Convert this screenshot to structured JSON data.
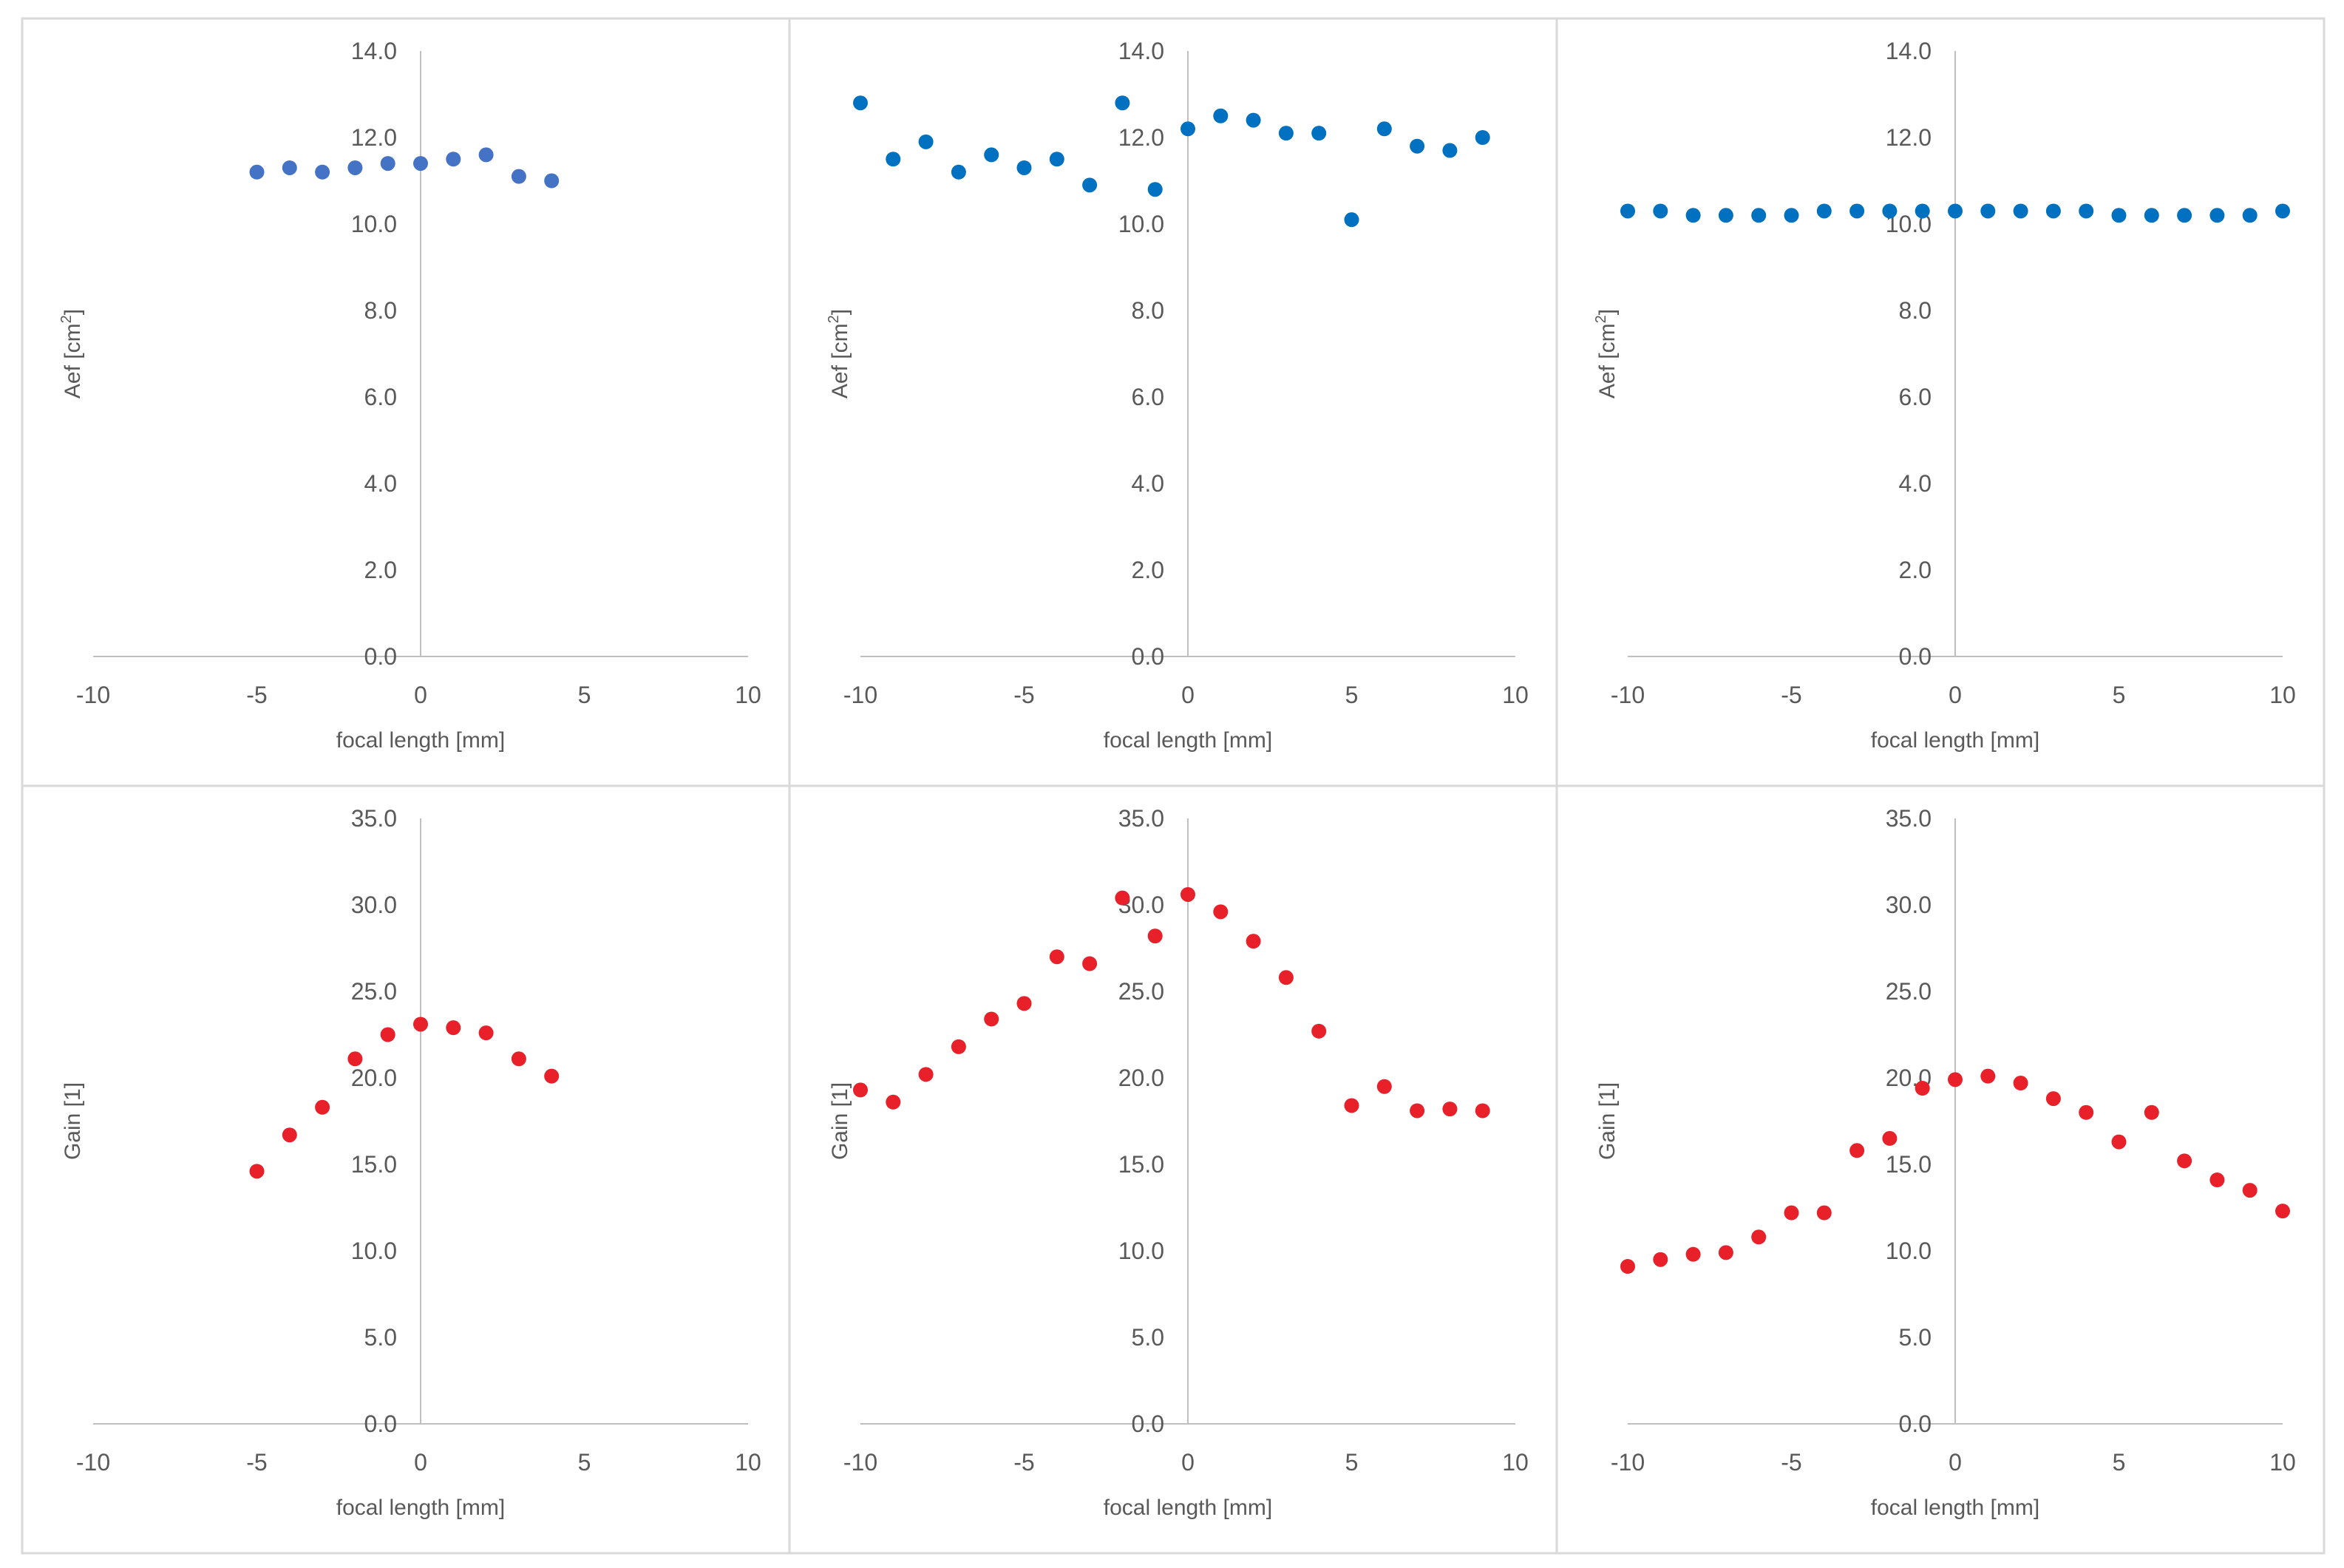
{
  "chart_data": [
    {
      "type": "scatter",
      "title": "",
      "xlabel": "focal length [mm]",
      "ylabel_main": "Aef [cm",
      "ylabel_sup": "2",
      "ylabel_end": "]",
      "xlim": [
        -10,
        10
      ],
      "ylim": [
        0,
        14
      ],
      "xticks": [
        "-10",
        "-5",
        "0",
        "5",
        "10"
      ],
      "yticks": [
        "0.0",
        "2.0",
        "4.0",
        "6.0",
        "8.0",
        "10.0",
        "12.0",
        "14.0"
      ],
      "color": "#4472C4",
      "x": [
        -5,
        -4,
        -3,
        -2,
        -1,
        0,
        1,
        2,
        3,
        4
      ],
      "y": [
        11.2,
        11.3,
        11.2,
        11.3,
        11.4,
        11.4,
        11.5,
        11.6,
        11.1,
        11.0
      ]
    },
    {
      "type": "scatter",
      "title": "",
      "xlabel": "focal length [mm]",
      "ylabel_main": "Aef [cm",
      "ylabel_sup": "2",
      "ylabel_end": "]",
      "xlim": [
        -10,
        10
      ],
      "ylim": [
        0,
        14
      ],
      "xticks": [
        "-10",
        "-5",
        "0",
        "5",
        "10"
      ],
      "yticks": [
        "0.0",
        "2.0",
        "4.0",
        "6.0",
        "8.0",
        "10.0",
        "12.0",
        "14.0"
      ],
      "color": "#0070C0",
      "x": [
        -10,
        -9,
        -8,
        -7,
        -6,
        -5,
        -4,
        -3,
        -2,
        -1,
        0,
        1,
        2,
        3,
        4,
        5,
        6,
        7,
        8,
        9
      ],
      "y": [
        12.8,
        11.5,
        11.9,
        11.2,
        11.6,
        11.3,
        11.5,
        10.9,
        12.8,
        10.8,
        12.2,
        12.5,
        12.4,
        12.1,
        12.1,
        10.1,
        12.2,
        11.8,
        11.7,
        12.0
      ]
    },
    {
      "type": "scatter",
      "title": "",
      "xlabel": "focal length [mm]",
      "ylabel_main": "Aef [cm",
      "ylabel_sup": "2",
      "ylabel_end": "]",
      "xlim": [
        -10,
        10
      ],
      "ylim": [
        0,
        14
      ],
      "xticks": [
        "-10",
        "-5",
        "0",
        "5",
        "10"
      ],
      "yticks": [
        "0.0",
        "2.0",
        "4.0",
        "6.0",
        "8.0",
        "10.0",
        "12.0",
        "14.0"
      ],
      "color": "#0070C0",
      "x": [
        -10,
        -9,
        -8,
        -7,
        -6,
        -5,
        -4,
        -3,
        -2,
        -1,
        0,
        1,
        2,
        3,
        4,
        5,
        6,
        7,
        8,
        9,
        10
      ],
      "y": [
        10.3,
        10.3,
        10.2,
        10.2,
        10.2,
        10.2,
        10.3,
        10.3,
        10.3,
        10.3,
        10.3,
        10.3,
        10.3,
        10.3,
        10.3,
        10.2,
        10.2,
        10.2,
        10.2,
        10.2,
        10.3
      ]
    },
    {
      "type": "scatter",
      "title": "",
      "xlabel": "focal length [mm]",
      "ylabel_main": "Gain [1]",
      "ylabel_sup": "",
      "ylabel_end": "",
      "xlim": [
        -10,
        10
      ],
      "ylim": [
        0,
        35
      ],
      "xticks": [
        "-10",
        "-5",
        "0",
        "5",
        "10"
      ],
      "yticks": [
        "0.0",
        "5.0",
        "10.0",
        "15.0",
        "20.0",
        "25.0",
        "30.0",
        "35.0"
      ],
      "color": "#E8202A",
      "x": [
        -5,
        -4,
        -3,
        -2,
        -1,
        0,
        1,
        2,
        3,
        4
      ],
      "y": [
        14.6,
        16.7,
        18.3,
        21.1,
        22.5,
        23.1,
        22.9,
        22.6,
        21.1,
        20.1
      ]
    },
    {
      "type": "scatter",
      "title": "",
      "xlabel": "focal length [mm]",
      "ylabel_main": "Gain [1]",
      "ylabel_sup": "",
      "ylabel_end": "",
      "xlim": [
        -10,
        10
      ],
      "ylim": [
        0,
        35
      ],
      "xticks": [
        "-10",
        "-5",
        "0",
        "5",
        "10"
      ],
      "yticks": [
        "0.0",
        "5.0",
        "10.0",
        "15.0",
        "20.0",
        "25.0",
        "30.0",
        "35.0"
      ],
      "color": "#E8202A",
      "x": [
        -10,
        -9,
        -8,
        -7,
        -6,
        -5,
        -4,
        -3,
        -2,
        -1,
        0,
        1,
        2,
        3,
        4,
        5,
        6,
        7,
        8,
        9
      ],
      "y": [
        19.3,
        18.6,
        20.2,
        21.8,
        23.4,
        24.3,
        27.0,
        26.6,
        30.4,
        28.2,
        30.6,
        29.6,
        27.9,
        25.8,
        22.7,
        18.4,
        19.5,
        18.1,
        18.2,
        18.1
      ]
    },
    {
      "type": "scatter",
      "title": "",
      "xlabel": "focal length [mm]",
      "ylabel_main": "Gain [1]",
      "ylabel_sup": "",
      "ylabel_end": "",
      "xlim": [
        -10,
        10
      ],
      "ylim": [
        0,
        35
      ],
      "xticks": [
        "-10",
        "-5",
        "0",
        "5",
        "10"
      ],
      "yticks": [
        "0.0",
        "5.0",
        "10.0",
        "15.0",
        "20.0",
        "25.0",
        "30.0",
        "35.0"
      ],
      "color": "#E8202A",
      "x": [
        -10,
        -9,
        -8,
        -7,
        -6,
        -5,
        -4,
        -3,
        -2,
        -1,
        0,
        1,
        2,
        3,
        4,
        5,
        6,
        7,
        8,
        9,
        10
      ],
      "y": [
        9.1,
        9.5,
        9.8,
        9.9,
        10.8,
        12.2,
        12.2,
        15.8,
        16.5,
        19.4,
        19.9,
        20.1,
        19.7,
        18.8,
        18.0,
        16.3,
        18.0,
        15.2,
        14.1,
        13.5,
        12.3
      ]
    }
  ]
}
